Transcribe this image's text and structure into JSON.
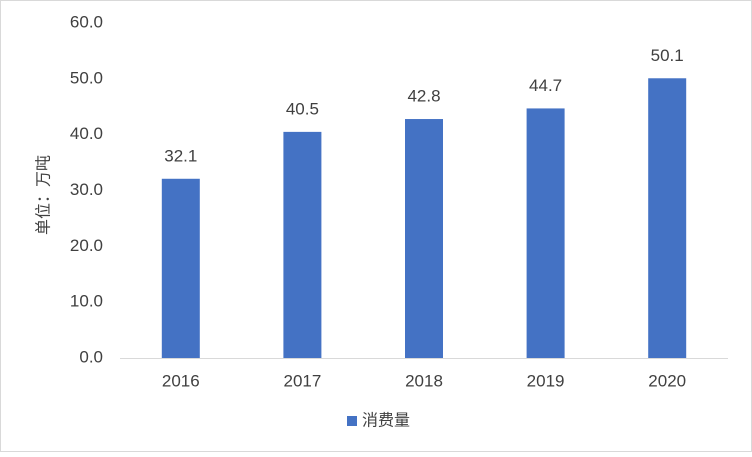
{
  "chart_data": {
    "type": "bar",
    "y_label": "单位：万吨",
    "categories": [
      "2016",
      "2017",
      "2018",
      "2019",
      "2020"
    ],
    "series": [
      {
        "name": "消费量",
        "color": "#4472c4",
        "values": [
          32.1,
          40.5,
          42.8,
          44.7,
          50.1
        ]
      }
    ],
    "ylim": [
      0,
      60
    ],
    "yticks": [
      {
        "value": 0,
        "label": "0.0"
      },
      {
        "value": 10,
        "label": "10.0"
      },
      {
        "value": 20,
        "label": "20.0"
      },
      {
        "value": 30,
        "label": "30.0"
      },
      {
        "value": 40,
        "label": "40.0"
      },
      {
        "value": 50,
        "label": "50.0"
      },
      {
        "value": 60,
        "label": "60.0"
      }
    ],
    "grid": false,
    "legend": "bottom"
  }
}
